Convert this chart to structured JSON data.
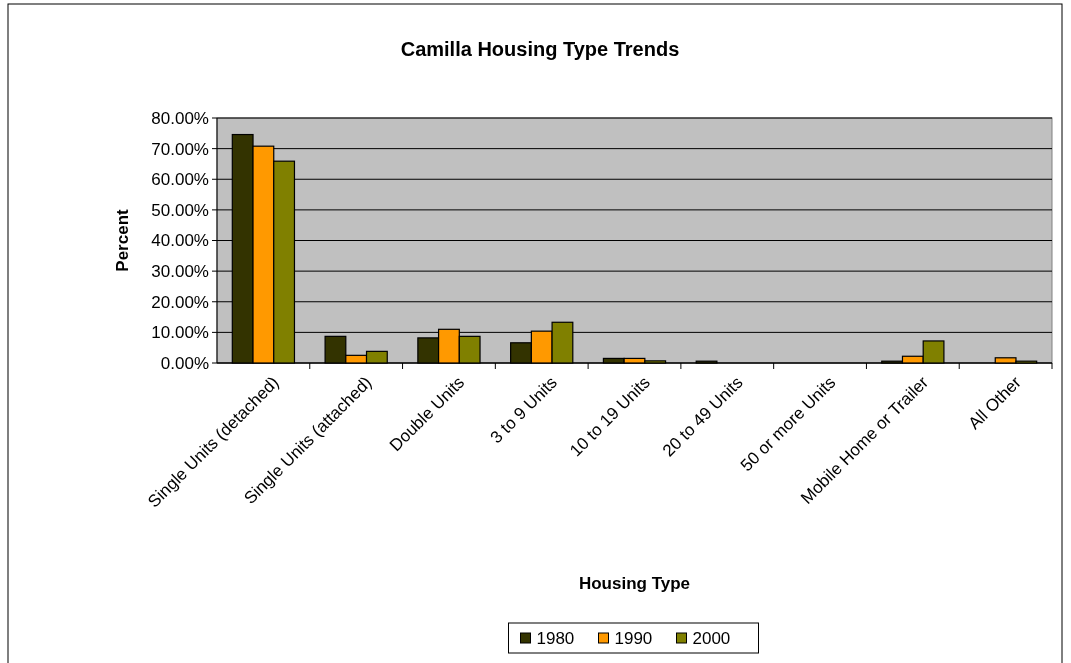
{
  "chart_data": {
    "type": "bar",
    "title": "Camilla Housing Type Trends",
    "xlabel": "Housing Type",
    "ylabel": "Percent",
    "categories": [
      "Single Units (detached)",
      "Single Units (attached)",
      "Double Units",
      "3 to 9 Units",
      "10 to 19 Units",
      "20 to 49 Units",
      "50 or more Units",
      "Mobile Home or Trailer",
      "All Other"
    ],
    "series": [
      {
        "name": "1980",
        "color": "#333300",
        "values": [
          74.6,
          8.7,
          8.2,
          6.6,
          1.5,
          0.6,
          0,
          0.6,
          0
        ]
      },
      {
        "name": "1990",
        "color": "#ff9900",
        "values": [
          70.8,
          2.5,
          11.0,
          10.4,
          1.5,
          0,
          0,
          2.2,
          1.7
        ]
      },
      {
        "name": "2000",
        "color": "#808000",
        "values": [
          65.9,
          3.8,
          8.7,
          13.3,
          0.7,
          0,
          0,
          7.2,
          0.6
        ]
      }
    ],
    "ylim": [
      0,
      80
    ],
    "yticks": [
      {
        "value": 0,
        "label": "0.00%"
      },
      {
        "value": 10,
        "label": "10.00%"
      },
      {
        "value": 20,
        "label": "20.00%"
      },
      {
        "value": 30,
        "label": "30.00%"
      },
      {
        "value": 40,
        "label": "40.00%"
      },
      {
        "value": 50,
        "label": "50.00%"
      },
      {
        "value": 60,
        "label": "60.00%"
      },
      {
        "value": 70,
        "label": "70.00%"
      },
      {
        "value": 80,
        "label": "80.00%"
      }
    ],
    "grid": "y",
    "legend": "bottom"
  }
}
